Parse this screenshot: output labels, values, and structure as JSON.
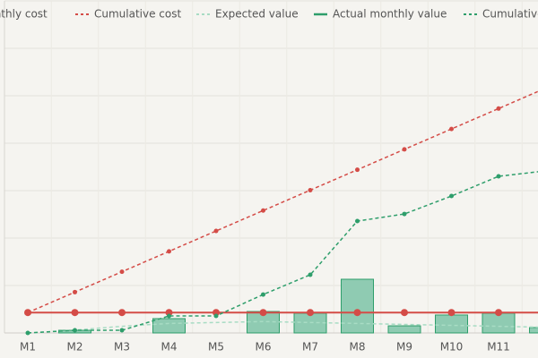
{
  "chart_data": {
    "type": "combo",
    "categories": [
      "M1",
      "M2",
      "M3",
      "M4",
      "M5",
      "M6",
      "M7",
      "M8",
      "M9",
      "M10",
      "M11",
      null
    ],
    "series": [
      {
        "name": "Monthly cost",
        "type": "line",
        "dashed": false,
        "markers": true,
        "color": "#d44c47",
        "values": [
          2150,
          2150,
          2150,
          2150,
          2150,
          2150,
          2150,
          2150,
          2150,
          2150,
          2150,
          2150
        ]
      },
      {
        "name": "Cumulative cost",
        "type": "line",
        "dashed": true,
        "markers": true,
        "color": "#d44c47",
        "values": [
          2150,
          4300,
          6450,
          8600,
          10750,
          12900,
          15050,
          17200,
          19350,
          21500,
          23650,
          25800
        ]
      },
      {
        "name": "Expected value",
        "type": "line",
        "dashed": true,
        "markers": false,
        "color": "#a8dcc4",
        "values": [
          0,
          300,
          700,
          1000,
          1100,
          1200,
          1100,
          1000,
          900,
          800,
          700,
          600
        ]
      },
      {
        "name": "Actual monthly value",
        "type": "bar",
        "color": "#2e9e6b",
        "fill": "#8fcbb2",
        "values": [
          0,
          280,
          0,
          1510,
          0,
          2260,
          2080,
          5660,
          750,
          1890,
          2080,
          570
        ]
      },
      {
        "name": "Cumulative value",
        "type": "line",
        "dashed": true,
        "markers": true,
        "color": "#2e9e6b",
        "values": [
          0,
          280,
          280,
          1790,
          1790,
          4050,
          6130,
          11790,
          12540,
          14430,
          16510,
          17080
        ]
      }
    ],
    "ylim": [
      0,
      35000
    ],
    "yticks": [
      0,
      5000,
      10000,
      15000,
      20000,
      25000,
      30000,
      35000
    ],
    "grid": true
  }
}
